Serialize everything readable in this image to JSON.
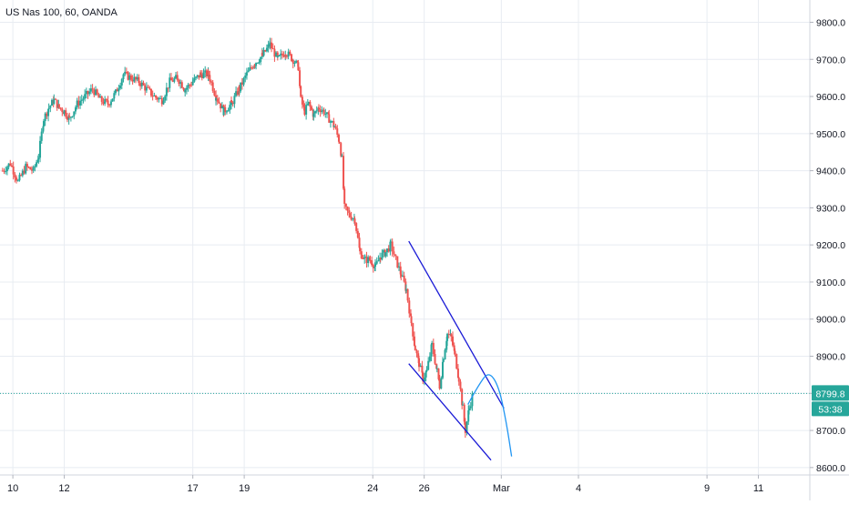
{
  "header": {
    "symbol_title": "US Nas 100, 60, OANDA"
  },
  "colors": {
    "up": "#26a69a",
    "down": "#ef5350",
    "grid": "#e8ecf2",
    "axis_text": "#131722",
    "channel": "#1a1ad6",
    "projection": "#2196f3",
    "price_line": "#26a69a",
    "price_badge": "#26a69a"
  },
  "chart_data": {
    "type": "candlestick",
    "title": "US Nas 100, 60, OANDA",
    "interval": "60",
    "y_ticks": [
      8600,
      8700,
      8800,
      8900,
      9000,
      9100,
      9200,
      9300,
      9400,
      9500,
      9600,
      9700,
      9800
    ],
    "y_tick_labels": [
      "8600.0",
      "8700.0",
      "8800.0",
      "8900.0",
      "9000.0",
      "9100.0",
      "9200.0",
      "9300.0",
      "9400.0",
      "9500.0",
      "9600.0",
      "9700.0",
      "9800.0"
    ],
    "ylim": [
      8580,
      9860
    ],
    "x_ticks": [
      {
        "label": "10",
        "day": 10
      },
      {
        "label": "12",
        "day": 12
      },
      {
        "label": "17",
        "day": 17
      },
      {
        "label": "19",
        "day": 19
      },
      {
        "label": "24",
        "day": 24
      },
      {
        "label": "26",
        "day": 26
      },
      {
        "label": "Mar",
        "day": 29
      },
      {
        "label": "4",
        "day": 32
      },
      {
        "label": "9",
        "day": 37
      },
      {
        "label": "11",
        "day": 39
      }
    ],
    "current_price": 8799.8,
    "current_price_label": "8799.8",
    "countdown_label": "53:38",
    "grid": true,
    "price_path": [
      [
        9.6,
        9400
      ],
      [
        9.9,
        9420
      ],
      [
        10.2,
        9370
      ],
      [
        10.5,
        9410
      ],
      [
        10.8,
        9400
      ],
      [
        11.0,
        9440
      ],
      [
        11.2,
        9540
      ],
      [
        11.4,
        9570
      ],
      [
        11.6,
        9590
      ],
      [
        11.8,
        9570
      ],
      [
        12.0,
        9560
      ],
      [
        12.2,
        9540
      ],
      [
        12.5,
        9580
      ],
      [
        12.8,
        9600
      ],
      [
        13.1,
        9620
      ],
      [
        13.4,
        9590
      ],
      [
        13.7,
        9580
      ],
      [
        14.0,
        9610
      ],
      [
        14.3,
        9660
      ],
      [
        14.6,
        9650
      ],
      [
        14.9,
        9640
      ],
      [
        15.2,
        9620
      ],
      [
        15.5,
        9600
      ],
      [
        15.8,
        9590
      ],
      [
        16.1,
        9640
      ],
      [
        16.4,
        9650
      ],
      [
        16.7,
        9620
      ],
      [
        17.0,
        9640
      ],
      [
        17.3,
        9660
      ],
      [
        17.6,
        9660
      ],
      [
        17.9,
        9600
      ],
      [
        18.2,
        9560
      ],
      [
        18.5,
        9580
      ],
      [
        18.8,
        9620
      ],
      [
        19.1,
        9660
      ],
      [
        19.4,
        9690
      ],
      [
        19.7,
        9710
      ],
      [
        20.0,
        9740
      ],
      [
        20.3,
        9700
      ],
      [
        20.6,
        9720
      ],
      [
        20.9,
        9700
      ],
      [
        21.1,
        9680
      ],
      [
        21.2,
        9590
      ],
      [
        21.35,
        9560
      ],
      [
        21.5,
        9580
      ],
      [
        21.7,
        9550
      ],
      [
        21.9,
        9570
      ],
      [
        22.1,
        9560
      ],
      [
        22.3,
        9540
      ],
      [
        22.5,
        9520
      ],
      [
        22.7,
        9480
      ],
      [
        22.8,
        9430
      ],
      [
        22.9,
        9300
      ],
      [
        23.1,
        9280
      ],
      [
        23.3,
        9270
      ],
      [
        23.5,
        9180
      ],
      [
        23.7,
        9160
      ],
      [
        23.9,
        9160
      ],
      [
        24.1,
        9140
      ],
      [
        24.3,
        9170
      ],
      [
        24.5,
        9180
      ],
      [
        24.7,
        9200
      ],
      [
        24.9,
        9160
      ],
      [
        25.1,
        9120
      ],
      [
        25.3,
        9080
      ],
      [
        25.5,
        8990
      ],
      [
        25.65,
        8920
      ],
      [
        25.8,
        8880
      ],
      [
        25.95,
        8840
      ],
      [
        26.1,
        8860
      ],
      [
        26.3,
        8930
      ],
      [
        26.5,
        8860
      ],
      [
        26.6,
        8820
      ],
      [
        26.75,
        8900
      ],
      [
        26.9,
        8960
      ],
      [
        27.05,
        8950
      ],
      [
        27.2,
        8900
      ],
      [
        27.35,
        8840
      ],
      [
        27.5,
        8760
      ],
      [
        27.6,
        8700
      ],
      [
        27.75,
        8760
      ],
      [
        27.9,
        8800
      ]
    ],
    "annotations": [
      {
        "kind": "trend_line",
        "name": "channel-upper",
        "from": [
          25.4,
          9210
        ],
        "to": [
          29.1,
          8760
        ]
      },
      {
        "kind": "trend_line",
        "name": "channel-lower",
        "from": [
          25.4,
          8880
        ],
        "to": [
          28.6,
          8620
        ]
      },
      {
        "kind": "projection_curve",
        "name": "projected-path",
        "points": [
          [
            27.7,
            8770
          ],
          [
            28.1,
            8820
          ],
          [
            28.5,
            8860
          ],
          [
            28.9,
            8820
          ],
          [
            29.2,
            8720
          ],
          [
            29.4,
            8630
          ]
        ]
      }
    ]
  }
}
